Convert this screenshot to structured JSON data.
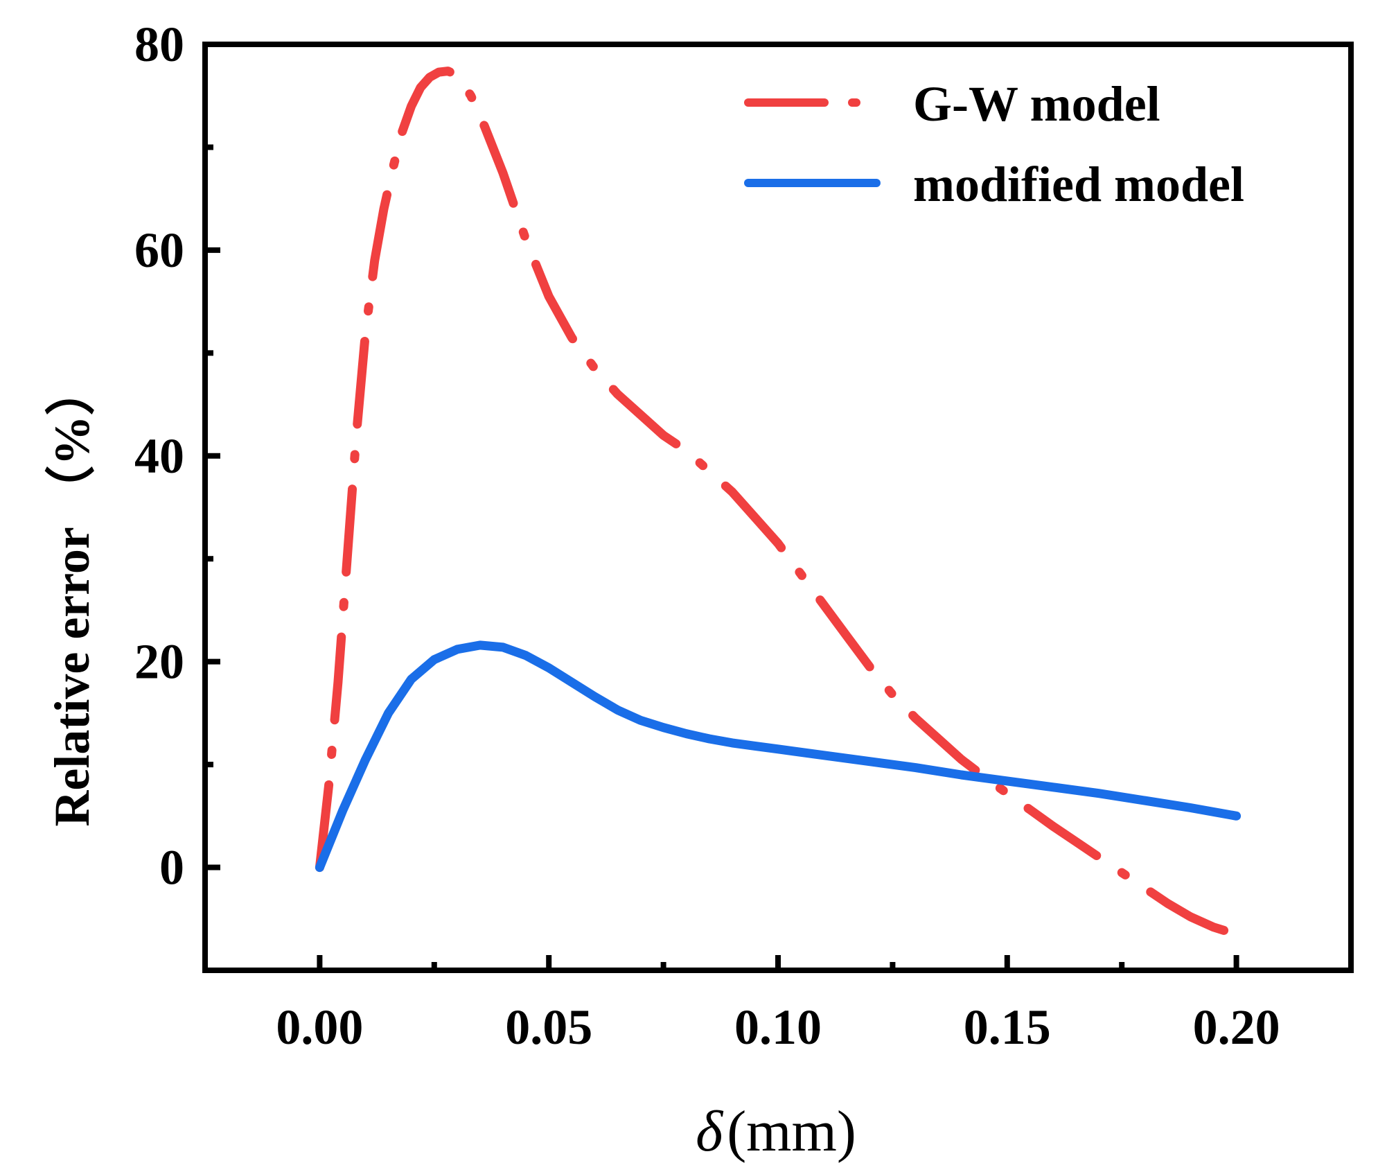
{
  "chart_data": {
    "type": "line",
    "title": "",
    "xlabel": "δ (mm)",
    "xlabel_symbol": "δ",
    "xlabel_unit": "(mm)",
    "ylabel": "Relative error （%）",
    "xlim": [
      -0.025,
      0.225
    ],
    "ylim": [
      -10,
      80
    ],
    "x_ticks": [
      0.0,
      0.05,
      0.1,
      0.15,
      0.2
    ],
    "x_tick_labels": [
      "0.00",
      "0.05",
      "0.10",
      "0.15",
      "0.20"
    ],
    "y_ticks": [
      0,
      20,
      40,
      60,
      80
    ],
    "y_tick_labels": [
      "0",
      "20",
      "40",
      "60",
      "80"
    ],
    "grid": false,
    "legend_position": "top-right",
    "series": [
      {
        "name": "G-W model",
        "color": "#f04040",
        "style": "dash-dot",
        "x": [
          0.0,
          0.002,
          0.004,
          0.006,
          0.008,
          0.01,
          0.012,
          0.014,
          0.016,
          0.018,
          0.02,
          0.022,
          0.024,
          0.026,
          0.028,
          0.03,
          0.033,
          0.036,
          0.04,
          0.045,
          0.05,
          0.055,
          0.06,
          0.065,
          0.07,
          0.075,
          0.08,
          0.085,
          0.09,
          0.095,
          0.1,
          0.105,
          0.11,
          0.115,
          0.12,
          0.125,
          0.13,
          0.135,
          0.14,
          0.145,
          0.15,
          0.155,
          0.16,
          0.165,
          0.17,
          0.175,
          0.18,
          0.185,
          0.19,
          0.195,
          0.2
        ],
        "values": [
          0.0,
          8.0,
          18.0,
          30.0,
          42.0,
          52.0,
          59.0,
          64.0,
          68.0,
          71.5,
          74.0,
          75.8,
          76.8,
          77.3,
          77.4,
          77.0,
          75.0,
          72.0,
          67.5,
          61.0,
          55.5,
          51.5,
          48.5,
          46.0,
          44.0,
          42.0,
          40.5,
          38.5,
          36.5,
          34.0,
          31.5,
          28.5,
          25.5,
          22.5,
          19.5,
          16.8,
          14.5,
          12.5,
          10.5,
          8.8,
          7.2,
          5.6,
          4.0,
          2.5,
          1.0,
          -0.5,
          -2.0,
          -3.5,
          -4.8,
          -5.8,
          -6.5
        ]
      },
      {
        "name": "modified model",
        "color": "#1a6ee8",
        "style": "solid",
        "x": [
          0.0,
          0.005,
          0.01,
          0.015,
          0.02,
          0.025,
          0.03,
          0.035,
          0.04,
          0.045,
          0.05,
          0.055,
          0.06,
          0.065,
          0.07,
          0.075,
          0.08,
          0.085,
          0.09,
          0.095,
          0.1,
          0.11,
          0.12,
          0.13,
          0.14,
          0.15,
          0.16,
          0.17,
          0.18,
          0.19,
          0.2
        ],
        "values": [
          0.0,
          5.5,
          10.5,
          15.0,
          18.3,
          20.2,
          21.2,
          21.6,
          21.4,
          20.6,
          19.4,
          18.0,
          16.6,
          15.3,
          14.3,
          13.6,
          13.0,
          12.5,
          12.1,
          11.8,
          11.5,
          10.9,
          10.3,
          9.7,
          9.0,
          8.4,
          7.8,
          7.2,
          6.5,
          5.8,
          5.0
        ]
      }
    ]
  }
}
